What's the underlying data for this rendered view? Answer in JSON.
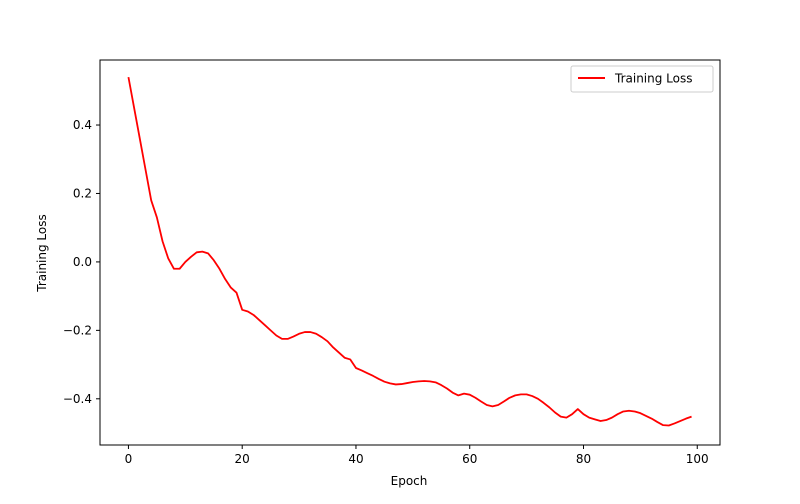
{
  "chart_data": {
    "type": "line",
    "title": "",
    "xlabel": "Epoch",
    "ylabel": "Training Loss",
    "xlim": [
      -5,
      104
    ],
    "ylim": [
      -0.535,
      0.59
    ],
    "xticks": [
      0,
      20,
      40,
      60,
      80,
      100
    ],
    "yticks": [
      -0.4,
      -0.2,
      0.0,
      0.2,
      0.4
    ],
    "xtick_labels": [
      "0",
      "20",
      "40",
      "60",
      "80",
      "100"
    ],
    "ytick_labels": [
      "−0.4",
      "−0.2",
      "0.0",
      "0.2",
      "0.4"
    ],
    "grid": false,
    "legend": {
      "position": "top-right"
    },
    "series": [
      {
        "name": "Training Loss",
        "color": "#ff0000",
        "x": [
          0,
          1,
          2,
          3,
          4,
          5,
          6,
          7,
          8,
          9,
          10,
          11,
          12,
          13,
          14,
          15,
          16,
          17,
          18,
          19,
          20,
          21,
          22,
          23,
          24,
          25,
          26,
          27,
          28,
          29,
          30,
          31,
          32,
          33,
          34,
          35,
          36,
          37,
          38,
          39,
          40,
          41,
          42,
          43,
          44,
          45,
          46,
          47,
          48,
          49,
          50,
          51,
          52,
          53,
          54,
          55,
          56,
          57,
          58,
          59,
          60,
          61,
          62,
          63,
          64,
          65,
          66,
          67,
          68,
          69,
          70,
          71,
          72,
          73,
          74,
          75,
          76,
          77,
          78,
          79,
          80,
          81,
          82,
          83,
          84,
          85,
          86,
          87,
          88,
          89,
          90,
          91,
          92,
          93,
          94,
          95,
          96,
          97,
          98,
          99
        ],
        "y": [
          0.54,
          0.45,
          0.36,
          0.27,
          0.18,
          0.13,
          0.06,
          0.01,
          -0.02,
          -0.02,
          0.0,
          0.015,
          0.028,
          0.03,
          0.025,
          0.005,
          -0.02,
          -0.05,
          -0.075,
          -0.09,
          -0.14,
          -0.145,
          -0.155,
          -0.17,
          -0.185,
          -0.2,
          -0.215,
          -0.225,
          -0.225,
          -0.218,
          -0.21,
          -0.205,
          -0.205,
          -0.21,
          -0.22,
          -0.232,
          -0.25,
          -0.265,
          -0.28,
          -0.285,
          -0.31,
          -0.317,
          -0.325,
          -0.333,
          -0.342,
          -0.35,
          -0.355,
          -0.358,
          -0.357,
          -0.354,
          -0.351,
          -0.349,
          -0.348,
          -0.349,
          -0.352,
          -0.36,
          -0.37,
          -0.382,
          -0.39,
          -0.385,
          -0.388,
          -0.397,
          -0.408,
          -0.418,
          -0.422,
          -0.418,
          -0.408,
          -0.397,
          -0.39,
          -0.387,
          -0.387,
          -0.392,
          -0.4,
          -0.412,
          -0.425,
          -0.44,
          -0.452,
          -0.455,
          -0.445,
          -0.43,
          -0.445,
          -0.455,
          -0.46,
          -0.465,
          -0.462,
          -0.455,
          -0.445,
          -0.437,
          -0.435,
          -0.437,
          -0.442,
          -0.45,
          -0.458,
          -0.468,
          -0.477,
          -0.478,
          -0.472,
          -0.465,
          -0.458,
          -0.452
        ]
      }
    ]
  }
}
